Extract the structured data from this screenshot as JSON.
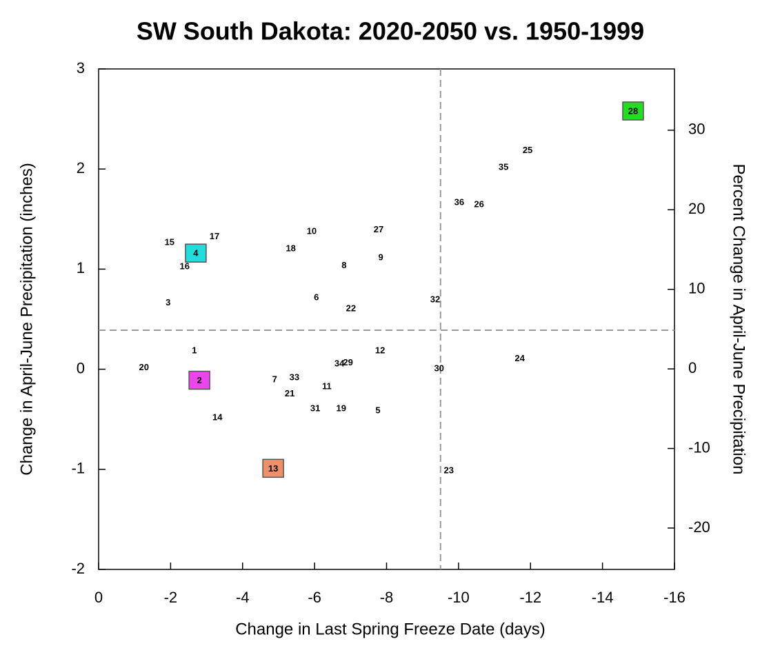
{
  "chart_data": {
    "type": "scatter",
    "title": "SW South Dakota: 2020-2050 vs. 1950-1999",
    "x_label": "Change in Last Spring Freeze Date (days)",
    "y_label": "Change in April-June Precipitation (inches)",
    "y2_label": "Percent Change in April-June Precipitation",
    "labels": [
      "28",
      "25",
      "35",
      "36",
      "26",
      "27",
      "10",
      "17",
      "15",
      "18",
      "4",
      "9",
      "16",
      "8",
      "6",
      "3",
      "32",
      "22",
      "1",
      "12",
      "34",
      "29",
      "24",
      "20",
      "30",
      "2",
      "7",
      "33",
      "11",
      "21",
      "31",
      "19",
      "5",
      "14",
      "13",
      "23"
    ],
    "x": [
      -14.85,
      -11.92,
      -11.25,
      -10.02,
      -10.57,
      -7.78,
      -5.92,
      -3.22,
      -1.97,
      -5.34,
      -2.7,
      -7.84,
      -2.39,
      -6.82,
      -6.05,
      -1.93,
      -9.35,
      -7.01,
      -2.66,
      -7.82,
      -6.69,
      -6.93,
      -11.7,
      -1.26,
      -9.46,
      -2.8,
      -4.89,
      -5.44,
      -6.34,
      -5.31,
      -6.02,
      -6.74,
      -7.76,
      -3.3,
      -4.85,
      -9.73
    ],
    "values": [
      2.58,
      2.19,
      2.02,
      1.67,
      1.65,
      1.4,
      1.38,
      1.33,
      1.27,
      1.21,
      1.16,
      1.12,
      1.03,
      1.04,
      0.72,
      0.67,
      0.7,
      0.61,
      0.19,
      0.19,
      0.06,
      0.07,
      0.11,
      0.02,
      0.01,
      -0.11,
      -0.1,
      -0.08,
      -0.17,
      -0.24,
      -0.39,
      -0.39,
      -0.41,
      -0.48,
      -0.99,
      -1.01
    ],
    "box_colors": [
      "#22dd22",
      null,
      null,
      null,
      null,
      null,
      null,
      null,
      null,
      null,
      "#22dddd",
      null,
      null,
      null,
      null,
      null,
      null,
      null,
      null,
      null,
      null,
      null,
      null,
      null,
      null,
      "#ee44ee",
      null,
      null,
      null,
      null,
      null,
      null,
      null,
      null,
      "#f0906a",
      null
    ],
    "xlim": [
      0,
      -16
    ],
    "xticks": [
      0,
      -2,
      -4,
      -6,
      -8,
      -10,
      -12,
      -14,
      -16
    ],
    "ylim": [
      -2,
      3
    ],
    "yticks": [
      -2,
      -1,
      0,
      1,
      2,
      3
    ],
    "y2lim": [
      -25.2,
      37.7
    ],
    "y2ticks": [
      -20,
      -10,
      0,
      10,
      20,
      30
    ],
    "reference_lines": {
      "x": -9.5,
      "y": 0.39
    }
  }
}
